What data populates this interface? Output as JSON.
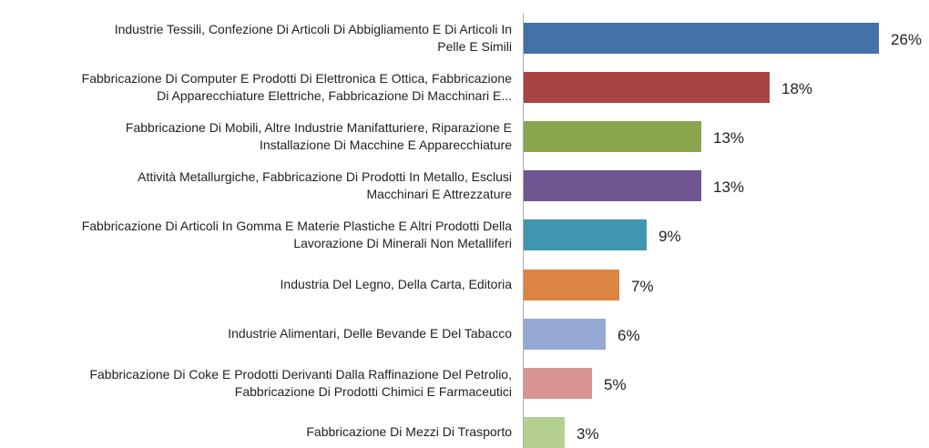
{
  "chart_data": {
    "type": "barh",
    "categories": [
      "Industrie Tessili, Confezione Di Articoli Di Abbigliamento E Di Articoli In\nPelle E Simili",
      "Fabbricazione Di Computer E Prodotti Di Elettronica E Ottica, Fabbricazione\nDi Apparecchiature Elettriche, Fabbricazione Di Macchinari E...",
      "Fabbricazione Di Mobili, Altre Industrie Manifatturiere, Riparazione E\nInstallazione Di Macchine E Apparecchiature",
      "Attività Metallurgiche, Fabbricazione Di Prodotti In Metallo, Esclusi\nMacchinari E Attrezzature",
      "Fabbricazione Di Articoli In Gomma E Materie Plastiche E Altri Prodotti Della\nLavorazione Di Minerali Non Metalliferi",
      "Industria Del Legno, Della Carta, Editoria",
      "Industrie Alimentari, Delle Bevande E Del Tabacco",
      "Fabbricazione Di Coke E Prodotti Derivanti Dalla Raffinazione Del Petrolio,\nFabbricazione Di Prodotti Chimici E Farmaceutici",
      "Fabbricazione Di Mezzi Di Trasporto"
    ],
    "values": [
      26,
      18,
      13,
      13,
      9,
      7,
      6,
      5,
      3
    ],
    "value_labels": [
      "26%",
      "18%",
      "13%",
      "13%",
      "9%",
      "7%",
      "6%",
      "5%",
      "3%"
    ],
    "colors": [
      "#4571a9",
      "#a94442",
      "#8aa74e",
      "#6f5592",
      "#3e97ae",
      "#dc8442",
      "#94a9d4",
      "#d99494",
      "#b5cf8f"
    ]
  }
}
